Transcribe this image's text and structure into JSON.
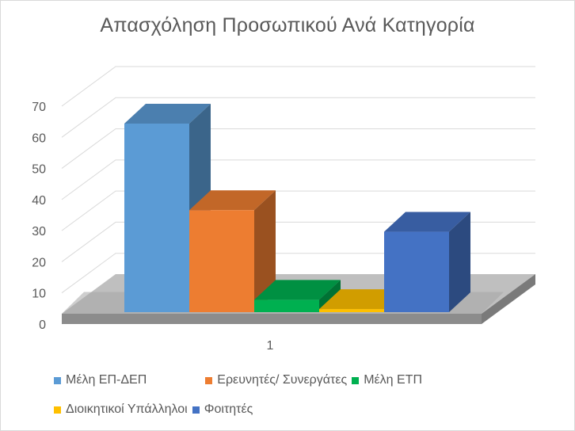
{
  "chart_data": {
    "type": "bar",
    "title": "Απασχόληση Προσωπικού Ανά Κατηγορία",
    "categories": [
      "1"
    ],
    "ylim": [
      0,
      70
    ],
    "yticks": [
      0,
      10,
      20,
      30,
      40,
      50,
      60,
      70
    ],
    "grid": true,
    "legend_position": "bottom",
    "series": [
      {
        "name": "Μέλη ΕΠ-ΔΕΠ",
        "values": [
          61
        ],
        "color": "#5b9bd5"
      },
      {
        "name": "Ερευνητές/ Συνεργάτες",
        "values": [
          33
        ],
        "color": "#ed7d31"
      },
      {
        "name": "Μέλη ΕΤΠ",
        "values": [
          4
        ],
        "color": "#00b050"
      },
      {
        "name": "Διοικητικοί Υπάλληλοι",
        "values": [
          1
        ],
        "color": "#ffc000"
      },
      {
        "name": "Φοιτητές",
        "values": [
          26
        ],
        "color": "#4472c4"
      }
    ]
  }
}
